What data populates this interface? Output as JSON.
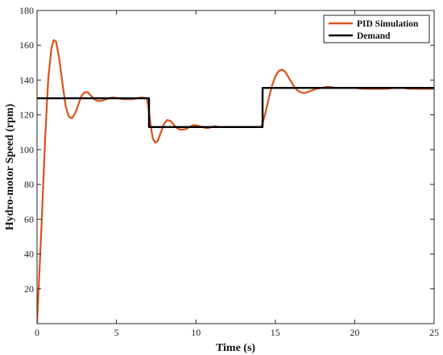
{
  "chart_data": {
    "type": "line",
    "xlabel": "Time (s)",
    "ylabel": "Hydro-motor Speed (rpm)",
    "xlim": [
      0,
      25
    ],
    "ylim": [
      0,
      180
    ],
    "xticks": [
      0,
      5,
      10,
      15,
      20,
      25
    ],
    "yticks": [
      20,
      40,
      60,
      80,
      100,
      120,
      140,
      160,
      180
    ],
    "grid": false,
    "legend_position": "top-right",
    "series": [
      {
        "name": "PID Simulation",
        "color": "#D95319",
        "x": [
          0,
          0.1,
          0.3,
          0.5,
          0.7,
          0.9,
          1.05,
          1.2,
          1.4,
          1.6,
          1.8,
          2.0,
          2.2,
          2.4,
          2.6,
          2.8,
          3.0,
          3.2,
          3.4,
          3.6,
          3.8,
          4.0,
          4.2,
          4.5,
          4.8,
          5.1,
          5.4,
          5.7,
          6.0,
          6.3,
          6.6,
          6.9,
          7.0,
          7.1,
          7.2,
          7.3,
          7.45,
          7.6,
          7.8,
          8.0,
          8.2,
          8.4,
          8.6,
          8.8,
          9.0,
          9.2,
          9.4,
          9.6,
          9.8,
          10.0,
          10.2,
          10.4,
          10.6,
          10.8,
          11.0,
          11.2,
          11.4,
          11.6,
          11.8,
          12.0,
          12.3,
          12.6,
          13.0,
          13.4,
          13.8,
          14.1,
          14.2,
          14.4,
          14.6,
          14.8,
          15.0,
          15.2,
          15.4,
          15.6,
          15.8,
          16.0,
          16.2,
          16.4,
          16.6,
          16.8,
          17.0,
          17.3,
          17.6,
          17.9,
          18.2,
          18.5,
          18.8,
          19.1,
          19.4,
          19.7,
          20.0,
          20.5,
          21.0,
          21.5,
          22.0,
          22.5,
          23.0,
          23.5,
          24.0,
          24.5,
          25.0
        ],
        "values": [
          0,
          20,
          60,
          105,
          140,
          158,
          163,
          162,
          152,
          138,
          125,
          119,
          118,
          121,
          126,
          131,
          133,
          133,
          131,
          129,
          128,
          128,
          128.5,
          129.5,
          130,
          129.5,
          129,
          129,
          129,
          129.5,
          130,
          129.5,
          125,
          118,
          111,
          106,
          104,
          105,
          110,
          115,
          117,
          116.5,
          114.5,
          112.5,
          111.5,
          111.5,
          112,
          113,
          114,
          114,
          113.5,
          113,
          112.5,
          112.5,
          113,
          113.5,
          113,
          113,
          113,
          113,
          113,
          113,
          113,
          113,
          113,
          113,
          115,
          122,
          130,
          137,
          142,
          145,
          146,
          145,
          142,
          139,
          136,
          134,
          133,
          132.5,
          133,
          134,
          135,
          135.5,
          136,
          136,
          135.5,
          135.5,
          135.5,
          135.5,
          135.5,
          135,
          135,
          135,
          135,
          135.5,
          135.5,
          135,
          135,
          135,
          135
        ]
      },
      {
        "name": "Demand",
        "color": "#000000",
        "x": [
          0,
          7.05,
          7.05,
          14.2,
          14.2,
          25
        ],
        "values": [
          129.5,
          129.5,
          113,
          113,
          135.5,
          135.5
        ]
      }
    ]
  }
}
